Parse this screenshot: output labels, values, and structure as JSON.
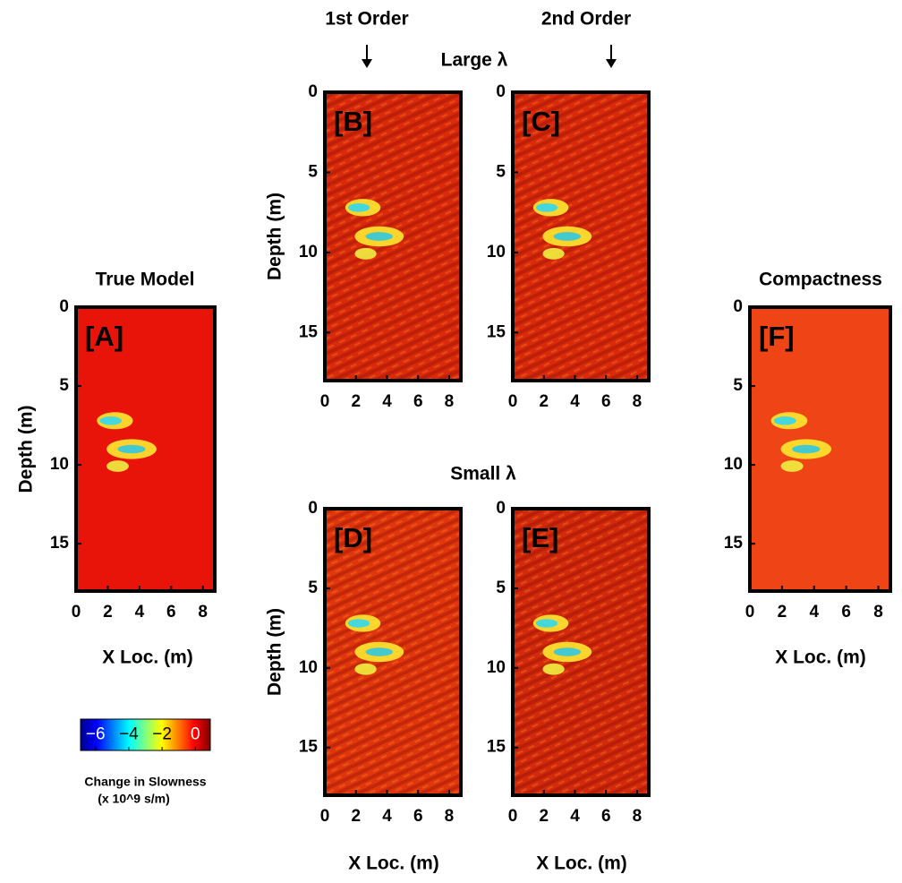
{
  "chart_data": [
    {
      "type": "heatmap",
      "panel_label": "[A]",
      "title": "True Model",
      "xlabel": "X Loc. (m)",
      "ylabel": "Depth (m)",
      "xlim": [
        0,
        8.75
      ],
      "ylim": [
        0,
        18
      ],
      "xticks": [
        0,
        2,
        4,
        6,
        8
      ],
      "yticks": [
        0,
        5,
        10,
        15
      ],
      "y_reversed": true,
      "color": "#e8140a"
    },
    {
      "type": "heatmap",
      "panel_label": "[B]",
      "ylabel": "Depth (m)",
      "xlim": [
        0,
        8.75
      ],
      "ylim": [
        0,
        18
      ],
      "xticks": [
        0,
        2,
        4,
        6,
        8
      ],
      "yticks": [
        0,
        5,
        10,
        15
      ],
      "y_reversed": true,
      "color": "#d92a0c"
    },
    {
      "type": "heatmap",
      "panel_label": "[C]",
      "xlim": [
        0,
        8.75
      ],
      "ylim": [
        0,
        18
      ],
      "xticks": [
        0,
        2,
        4,
        6,
        8
      ],
      "yticks": [
        0,
        5,
        10,
        15
      ],
      "y_reversed": true,
      "color": "#d92a0c"
    },
    {
      "type": "heatmap",
      "panel_label": "[D]",
      "xlabel": "X Loc. (m)",
      "ylabel": "Depth (m)",
      "xlim": [
        0,
        8.75
      ],
      "ylim": [
        0,
        18
      ],
      "xticks": [
        0,
        2,
        4,
        6,
        8
      ],
      "yticks": [
        0,
        5,
        10,
        15
      ],
      "y_reversed": true,
      "color": "#e0360e"
    },
    {
      "type": "heatmap",
      "panel_label": "[E]",
      "xlabel": "X Loc. (m)",
      "xlim": [
        0,
        8.75
      ],
      "ylim": [
        0,
        18
      ],
      "xticks": [
        0,
        2,
        4,
        6,
        8
      ],
      "yticks": [
        0,
        5,
        10,
        15
      ],
      "y_reversed": true,
      "color": "#d22a0c"
    },
    {
      "type": "heatmap",
      "panel_label": "[F]",
      "title": "Compactness",
      "xlabel": "X Loc. (m)",
      "xlim": [
        0,
        8.75
      ],
      "ylim": [
        0,
        18
      ],
      "xticks": [
        0,
        2,
        4,
        6,
        8
      ],
      "yticks": [
        0,
        5,
        10,
        15
      ],
      "y_reversed": true,
      "color": "#ee4416"
    },
    {
      "type": "colorbar",
      "title": "Change in Slowness",
      "units": "(x 10^9 s/m)",
      "colormap": "jet",
      "xlim": [
        -6.9,
        0.9
      ],
      "xticks": [
        {
          "value": -6,
          "label": "−6"
        },
        {
          "value": -4,
          "label": "−4"
        },
        {
          "value": -2,
          "label": "−2"
        },
        0
      ]
    }
  ],
  "annotations": [
    "1st Order",
    "2nd Order",
    "Large λ",
    "Small λ"
  ]
}
